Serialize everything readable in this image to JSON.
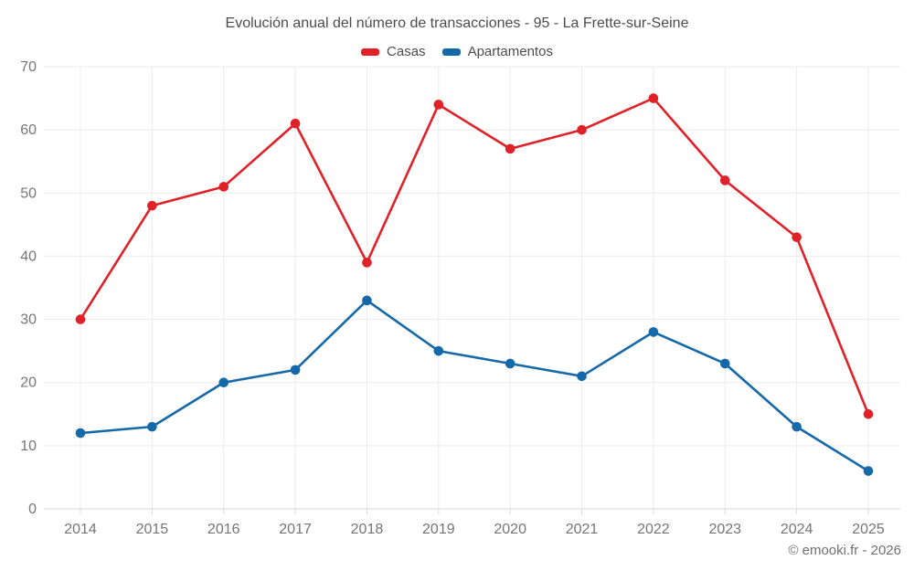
{
  "chart": {
    "title": "Evolución anual del número de transacciones - 95 - La Frette-sur-Seine"
  },
  "footer": {
    "credit": "© emooki.fr - 2026"
  },
  "chart_data": {
    "type": "line",
    "title": "Evolución anual del número de transacciones - 95 - La Frette-sur-Seine",
    "categories": [
      "2014",
      "2015",
      "2016",
      "2017",
      "2018",
      "2019",
      "2020",
      "2021",
      "2022",
      "2023",
      "2024",
      "2025"
    ],
    "series": [
      {
        "name": "Casas",
        "color": "#e02128",
        "values": [
          30,
          48,
          51,
          61,
          39,
          64,
          57,
          60,
          65,
          52,
          43,
          15
        ]
      },
      {
        "name": "Apartamentos",
        "color": "#1669a9",
        "values": [
          12,
          13,
          20,
          22,
          33,
          25,
          23,
          21,
          28,
          23,
          13,
          6
        ]
      }
    ],
    "xlabel": "",
    "ylabel": "",
    "ylim": [
      0,
      70
    ],
    "yticks": [
      0,
      10,
      20,
      30,
      40,
      50,
      60,
      70
    ],
    "grid": true,
    "legend_position": "top",
    "grid_color": "#ebebeb",
    "axis_label_color": "#757575"
  }
}
